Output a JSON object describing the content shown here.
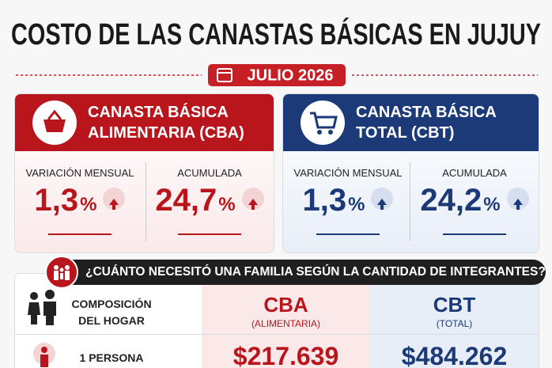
{
  "header": {
    "title": "COSTO DE LAS CANASTAS BÁSICAS EN JUJUY",
    "date": "JULIO 2026"
  },
  "cards": [
    {
      "title_line1": "CANASTA BÁSICA",
      "title_line2": "ALIMENTARIA (CBA)",
      "metrics": [
        {
          "label": "VARIACIÓN MENSUAL",
          "value": "1,3",
          "unit": "%"
        },
        {
          "label": "ACUMULADA",
          "value": "24,7",
          "unit": "%"
        }
      ]
    },
    {
      "title_line1": "CANASTA BÁSICA",
      "title_line2": "TOTAL (CBT)",
      "metrics": [
        {
          "label": "VARIACIÓN MENSUAL",
          "value": "1,3",
          "unit": "%"
        },
        {
          "label": "ACUMULADA",
          "value": "24,2",
          "unit": "%"
        }
      ]
    }
  ],
  "question": "¿CUÁNTO NECESITÓ UNA FAMILIA SEGÚN LA CANTIDAD DE INTEGRANTES?",
  "table": {
    "header": {
      "composition": "COMPOSICIÓN DEL HOGAR",
      "cba": "CBA",
      "cba_sub": "(ALIMENTARIA)",
      "cbt": "CBT",
      "cbt_sub": "(TOTAL)"
    },
    "rows": [
      [
        "1 PERSONA",
        "$217.639",
        "$484.262"
      ]
    ]
  }
}
